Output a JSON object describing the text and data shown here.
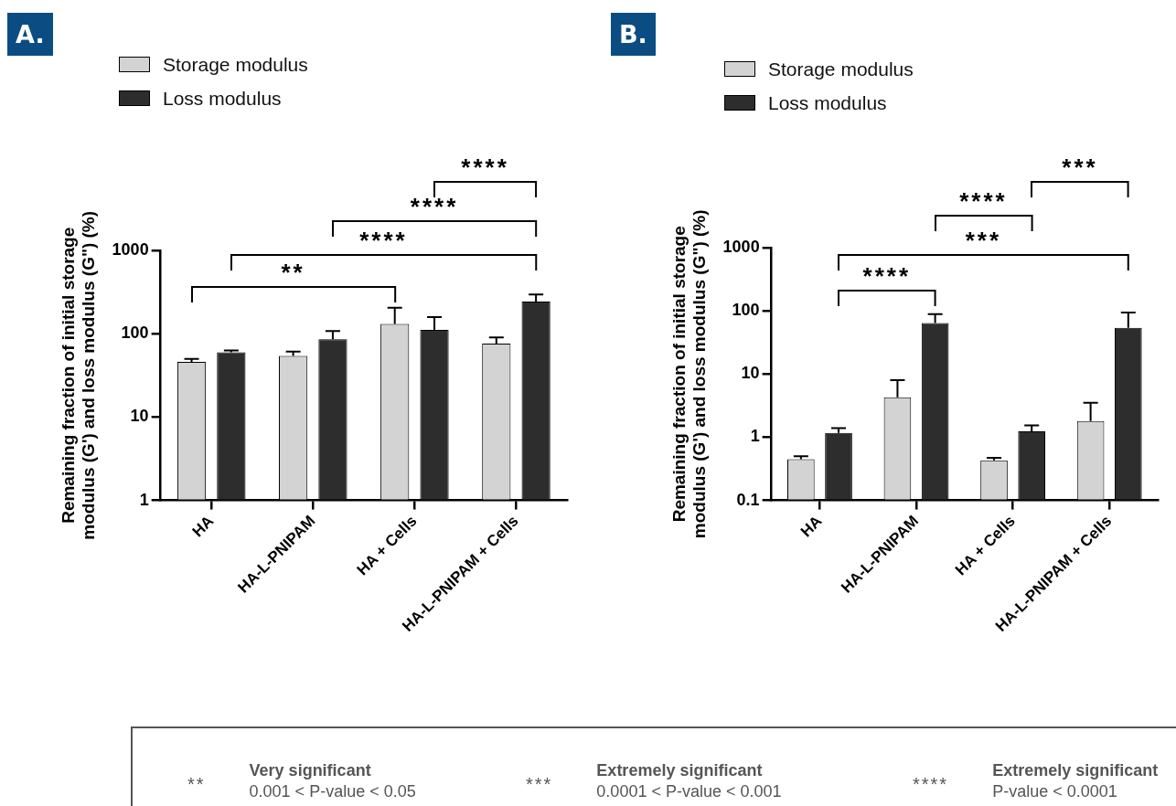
{
  "chart_data": [
    {
      "type": "bar",
      "title": "A.",
      "ylabel": "Remaining fraction of initial storage modulus (G') and loss modulus (G\") (%)",
      "categories": [
        "HA",
        "HA-L-PNIPAM",
        "HA + Cells",
        "HA-L-PNIPAM + Cells"
      ],
      "series": [
        {
          "name": "Storage modulus",
          "color": "#d3d3d3",
          "values": [
            46,
            54,
            131,
            76
          ],
          "errors": [
            [
              46,
              50
            ],
            [
              54,
              61
            ],
            [
              131,
              205
            ],
            [
              76,
              90
            ]
          ]
        },
        {
          "name": "Loss modulus",
          "color": "#2d2d2d",
          "values": [
            60,
            86,
            111,
            243
          ],
          "errors": [
            [
              60,
              63
            ],
            [
              86,
              108
            ],
            [
              111,
              158
            ],
            [
              243,
              295
            ]
          ]
        }
      ],
      "log": "y",
      "ylim": [
        1,
        1000
      ],
      "yticks": [
        1,
        10,
        100,
        1000
      ],
      "grid": false,
      "legend": "top left",
      "annotations": [
        "**",
        "****",
        "****",
        "****"
      ]
    },
    {
      "type": "bar",
      "title": "B.",
      "ylabel": "Remaining fraction of initial storage modulus (G') and loss modulus (G\") (%)",
      "categories": [
        "HA",
        "HA-L-PNIPAM",
        "HA + Cells",
        "HA-L-PNIPAM + Cells"
      ],
      "series": [
        {
          "name": "Storage modulus",
          "color": "#d3d3d3",
          "values": [
            0.45,
            4.3,
            0.43,
            1.8
          ],
          "errors": [
            [
              0.45,
              0.5
            ],
            [
              4.3,
              8
            ],
            [
              0.43,
              0.47
            ],
            [
              1.8,
              3.5
            ]
          ]
        },
        {
          "name": "Loss modulus",
          "color": "#2d2d2d",
          "values": [
            1.17,
            64,
            1.24,
            54
          ],
          "errors": [
            [
              1.17,
              1.39
            ],
            [
              64,
              89
            ],
            [
              1.24,
              1.54
            ],
            [
              54,
              94
            ]
          ]
        }
      ],
      "log": "y",
      "ylim": [
        0.1,
        1000
      ],
      "yticks": [
        0.1,
        1,
        10,
        100,
        1000
      ],
      "grid": false,
      "legend": "top left",
      "annotations": [
        "****",
        "***",
        "****",
        "***"
      ]
    },
    {
      "type": "other",
      "annotations": [
        "**",
        "Very significant",
        "0.001 < P-value < 0.05",
        "***",
        "Extremely significant",
        "0.0001 < P-value < 0.001",
        "****",
        "Extremely significant",
        "P-value < 0.0001"
      ]
    }
  ]
}
